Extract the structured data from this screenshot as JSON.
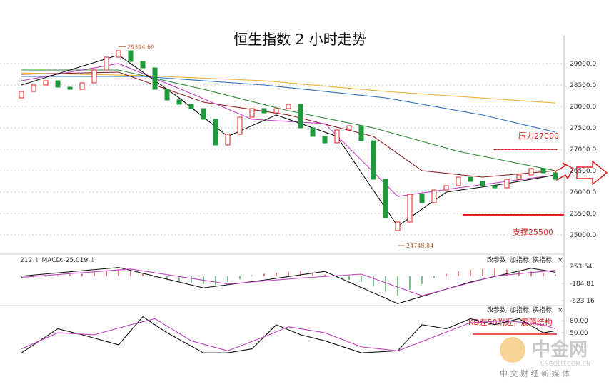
{
  "chart_data": {
    "type": "candlestick",
    "title": "恒生指数 2 小时走势",
    "open": [
      28200,
      28350,
      28500,
      28600,
      28450,
      28400,
      28550,
      28850,
      29150,
      29300,
      29050,
      28900,
      28400,
      28150,
      28050,
      27950,
      27700,
      27100,
      27350,
      27750,
      27950,
      27850,
      27950,
      28050,
      27500,
      27300,
      27150,
      27450,
      27550,
      27200,
      26300,
      25100,
      25300,
      25950,
      25750,
      26050,
      26150,
      26350,
      26250,
      26150,
      26100,
      26300,
      26400,
      26550,
      26450
    ],
    "close": [
      28350,
      28500,
      28600,
      28450,
      28400,
      28550,
      28850,
      29150,
      29300,
      29050,
      28900,
      28400,
      28150,
      28050,
      27950,
      27700,
      27100,
      27350,
      27750,
      27950,
      27850,
      27950,
      28050,
      27500,
      27300,
      27150,
      27450,
      27550,
      27200,
      26300,
      25400,
      25300,
      25950,
      25750,
      26050,
      26150,
      26350,
      26250,
      26150,
      26100,
      26300,
      26400,
      26550,
      26450,
      26300
    ],
    "up_color": "#e02020",
    "down_color": "#1e9a3c",
    "ylim": [
      24650,
      29650
    ],
    "yticks": [
      {
        "value": 25000,
        "label": "25000.0"
      },
      {
        "value": 25500,
        "label": "25500.0"
      },
      {
        "value": 26000,
        "label": "26000.0"
      },
      {
        "value": 26500,
        "label": "26500.0"
      },
      {
        "value": 27000,
        "label": "27000.0"
      },
      {
        "value": 27500,
        "label": "27500.0"
      },
      {
        "value": 28000,
        "label": "28000.0"
      },
      {
        "value": 28500,
        "label": "28500.0"
      },
      {
        "value": 29000,
        "label": "29000.0"
      }
    ],
    "grid": true,
    "high": 29394.69,
    "low": 24748.84,
    "ma": [
      {
        "color": "#f0b030",
        "x": [
          0,
          10,
          20,
          30,
          44
        ],
        "values": [
          28780,
          28720,
          28600,
          28350,
          28080
        ]
      },
      {
        "color": "#2a6fc0",
        "x": [
          0,
          10,
          20,
          30,
          38,
          44
        ],
        "values": [
          28700,
          28700,
          28500,
          28200,
          27800,
          27400
        ]
      },
      {
        "color": "#2e8b3a",
        "x": [
          0,
          8,
          15,
          22,
          29,
          36,
          44
        ],
        "values": [
          28850,
          28850,
          28400,
          27900,
          27500,
          26950,
          26500
        ]
      },
      {
        "color": "#8b2020",
        "x": [
          0,
          8,
          15,
          22,
          29,
          33,
          38,
          44
        ],
        "values": [
          28750,
          28800,
          28100,
          27800,
          27300,
          26500,
          26350,
          26500
        ]
      },
      {
        "color": "#c040c0",
        "x": [
          0,
          8,
          14,
          19,
          25,
          31,
          36,
          44
        ],
        "values": [
          28600,
          29000,
          28300,
          27700,
          27600,
          25900,
          26100,
          26400
        ]
      },
      {
        "color": "#111111",
        "x": [
          0,
          8,
          13,
          17,
          21,
          26,
          31,
          35,
          40,
          44
        ],
        "values": [
          28500,
          29200,
          28200,
          27300,
          27800,
          27300,
          25200,
          26000,
          26200,
          26400
        ]
      }
    ],
    "annotations": [
      "压力27000",
      "支撑25500",
      "KD在50附近，震荡结构"
    ],
    "macd": {
      "label": "212 ↓ MACD:-25.019 ↓",
      "ylim": [
        -750,
        450
      ],
      "yticks": [
        {
          "value": 253.54,
          "label": "253.54"
        },
        {
          "value": -184.81,
          "label": "-184.81"
        },
        {
          "value": -623.16,
          "label": "-623.16"
        }
      ],
      "hist": [
        -60,
        -40,
        -20,
        20,
        40,
        60,
        100,
        130,
        150,
        120,
        60,
        -40,
        -100,
        -150,
        -180,
        -200,
        -230,
        -150,
        -80,
        20,
        60,
        90,
        110,
        130,
        100,
        40,
        -60,
        -100,
        -150,
        -250,
        -400,
        -500,
        -350,
        -200,
        -50,
        60,
        120,
        160,
        180,
        190,
        170,
        150,
        120,
        80,
        40
      ],
      "lines": [
        {
          "color": "#111111",
          "x": [
            0,
            8,
            15,
            20,
            25,
            31,
            37,
            42,
            44
          ],
          "values": [
            0,
            220,
            -300,
            -100,
            120,
            -700,
            -150,
            200,
            100
          ]
        },
        {
          "color": "#c040c0",
          "x": [
            0,
            9,
            17,
            23,
            28,
            33,
            39,
            44
          ],
          "values": [
            -30,
            180,
            -200,
            -50,
            50,
            -500,
            0,
            150
          ]
        }
      ]
    },
    "kd": {
      "ylim": [
        -5,
        100
      ],
      "yticks": [
        {
          "value": 80,
          "label": "80.00"
        },
        {
          "value": 50,
          "label": "50.00"
        }
      ],
      "lines": [
        {
          "color": "#111111",
          "x": [
            0,
            3,
            5,
            8,
            10,
            12,
            15,
            17,
            19,
            21,
            23,
            25,
            28,
            31,
            33,
            35,
            37,
            39,
            41,
            43,
            44
          ],
          "values": [
            0,
            60,
            45,
            20,
            90,
            50,
            0,
            0,
            10,
            70,
            45,
            30,
            0,
            5,
            70,
            60,
            85,
            70,
            85,
            50,
            55
          ]
        },
        {
          "color": "#c040c0",
          "x": [
            0,
            3,
            6,
            9,
            11,
            14,
            17,
            20,
            22,
            25,
            28,
            31,
            34,
            37,
            40,
            43,
            44
          ],
          "values": [
            10,
            50,
            45,
            70,
            85,
            30,
            5,
            40,
            65,
            50,
            15,
            5,
            40,
            75,
            80,
            70,
            60
          ]
        }
      ]
    },
    "buttons": [
      "改参数",
      "加指标",
      "换指标",
      "×"
    ],
    "watermark": [
      "中金网",
      "CNGOLD.COM.CN",
      "中 文 财 经 新 媒 体"
    ]
  }
}
